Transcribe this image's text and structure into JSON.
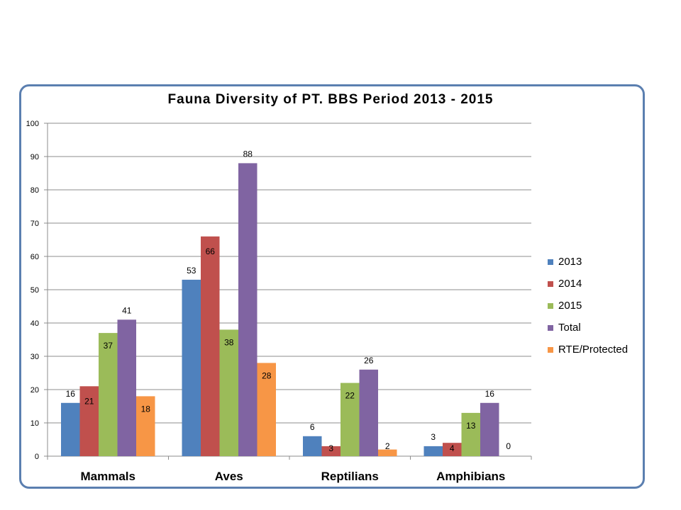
{
  "chart_data": {
    "type": "bar",
    "title": "Fauna Diversity of PT. BBS Period 2013 - 2015",
    "xlabel": "",
    "ylabel": "",
    "ylim": [
      0,
      100
    ],
    "yticks": [
      0,
      10,
      20,
      30,
      40,
      50,
      60,
      70,
      80,
      90,
      100
    ],
    "grid": true,
    "legend_position": "right",
    "categories": [
      "Mammals",
      "Aves",
      "Reptilians",
      "Amphibians"
    ],
    "series": [
      {
        "name": "2013",
        "color": "#4F81BD",
        "values": [
          16,
          53,
          6,
          3
        ],
        "labels": [
          "16",
          "53",
          "6",
          "3"
        ]
      },
      {
        "name": "2014",
        "color": "#C0504D",
        "values": [
          21,
          66,
          3,
          4
        ],
        "labels": [
          "21",
          "66",
          "3",
          "4"
        ]
      },
      {
        "name": "2015",
        "color": "#9BBB59",
        "values": [
          37,
          38,
          22,
          13
        ],
        "labels": [
          "37",
          "38",
          "22",
          "13"
        ]
      },
      {
        "name": "Total",
        "color": "#8064A2",
        "values": [
          41,
          88,
          26,
          16
        ],
        "labels": [
          "41",
          "88",
          "26",
          "16"
        ]
      },
      {
        "name": "RTE/Protected",
        "color": "#F79646",
        "values": [
          18,
          28,
          2,
          0
        ],
        "labels": [
          "18",
          "28",
          "2",
          "0"
        ]
      }
    ]
  }
}
